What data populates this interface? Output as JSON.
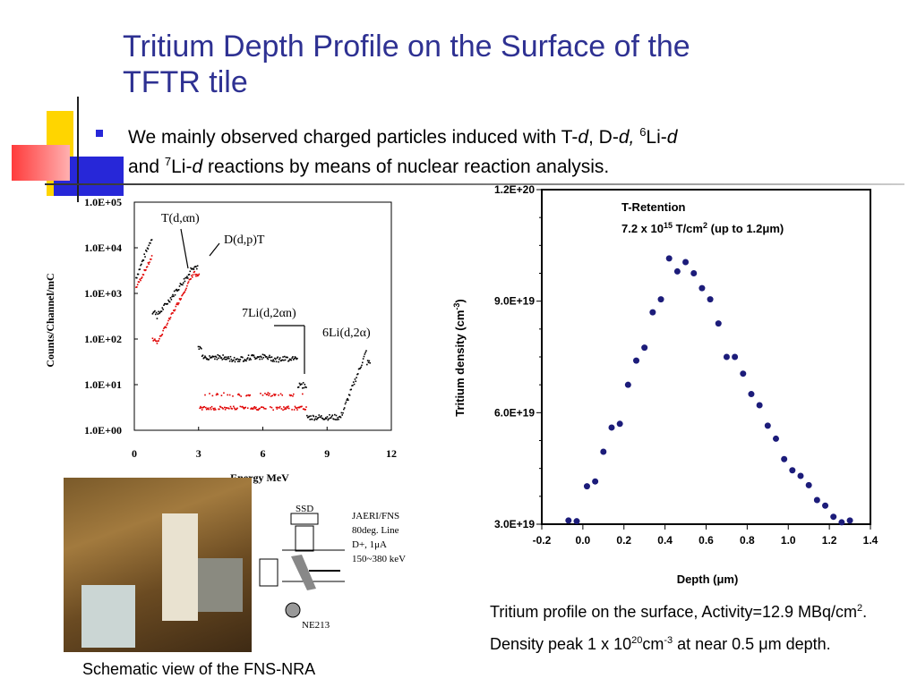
{
  "slide": {
    "title_line1": "Tritium Depth Profile on the Surface of the",
    "title_line2": "TFTR tile",
    "bullet": {
      "t1": "We mainly observed charged particles induced with T-",
      "t2": "d",
      "t3": ", D-",
      "t4": "d,",
      "t5": " ",
      "sup6": "6",
      "t6": "Li-",
      "t7": "d",
      "t8": "and ",
      "sup7": "7",
      "t9": "Li-",
      "t10": "d",
      "t11": " reactions by means of nuclear reaction analysis."
    },
    "caption_left": "Schematic view of the FNS-NRA",
    "caption_right": {
      "p1": "Tritium profile on the surface, Activity=12.9 MBq/cm",
      "sup1": "2",
      "p2": ". Density peak 1 x 10",
      "sup2": "20",
      "p3": "cm",
      "sup3": "-3",
      "p4": " at near 0.5 ",
      "mu": "μ",
      "p5": "m depth."
    }
  },
  "spectrum": {
    "ylabel": "Counts/Channel/mC",
    "xlabel": "Energy MeV",
    "yticks": [
      "1.0E+00",
      "1.0E+01",
      "1.0E+02",
      "1.0E+03",
      "1.0E+04",
      "1.0E+05"
    ],
    "xticks": [
      "0",
      "3",
      "6",
      "9",
      "12"
    ],
    "annotations": {
      "a1": "T(d,αn)",
      "a2": "D(d,p)T",
      "a3": "7Li(d,2αn)",
      "a4": "6Li(d,2α)"
    }
  },
  "schematic": {
    "ssd": "SSD",
    "info1": "JAERI/FNS",
    "info2": "80deg. Line",
    "info3": "D+,  1μA",
    "info4": "150~380 keV",
    "ne": "NE213"
  },
  "chart_data": {
    "type": "scatter",
    "xlabel": "Depth  (μm)",
    "ylabel": "Tritium density  (cm-3)",
    "xlim": [
      -0.2,
      1.4
    ],
    "ylim": [
      3e+19,
      1.2e+20
    ],
    "xticks": [
      "-0.2",
      "0.0",
      "0.2",
      "0.4",
      "0.6",
      "0.8",
      "1.0",
      "1.2",
      "1.4"
    ],
    "yticks": [
      "3.0E+19",
      "6.0E+19",
      "9.0E+19",
      "1.2E+20"
    ],
    "annotation_line1": "T-Retention",
    "annotation_line2": "7.2 x 10",
    "annotation_sup": "15",
    "annotation_line3": " T/cm",
    "annotation_sup2": "2",
    "annotation_line4": " (up to 1.2μm)",
    "color": "#1c1c7a",
    "x": [
      -0.07,
      -0.03,
      0.02,
      0.06,
      0.1,
      0.14,
      0.18,
      0.22,
      0.26,
      0.3,
      0.34,
      0.38,
      0.42,
      0.46,
      0.5,
      0.54,
      0.58,
      0.62,
      0.66,
      0.7,
      0.74,
      0.78,
      0.82,
      0.86,
      0.9,
      0.94,
      0.98,
      1.02,
      1.06,
      1.1,
      1.14,
      1.18,
      1.22,
      1.26,
      1.3
    ],
    "y": [
      3.1e+19,
      3.08e+19,
      4.02e+19,
      4.15e+19,
      4.95e+19,
      5.6e+19,
      5.7e+19,
      6.75e+19,
      7.4e+19,
      7.75e+19,
      8.7e+19,
      9.05e+19,
      1.015e+20,
      9.8e+19,
      1.005e+20,
      9.75e+19,
      9.35e+19,
      9.05e+19,
      8.4e+19,
      7.5e+19,
      7.5e+19,
      7.05e+19,
      6.5e+19,
      6.2e+19,
      5.65e+19,
      5.3e+19,
      4.75e+19,
      4.45e+19,
      4.3e+19,
      4.05e+19,
      3.65e+19,
      3.5e+19,
      3.2e+19,
      3.05e+19,
      3.1e+19
    ]
  }
}
